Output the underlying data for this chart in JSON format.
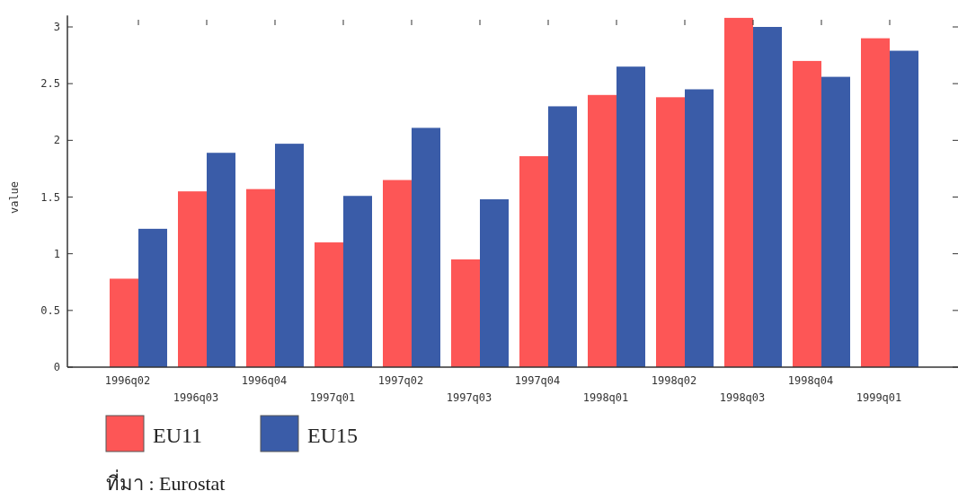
{
  "chart_data": {
    "type": "bar",
    "ylabel": "value",
    "categories": [
      "1996q02",
      "1996q03",
      "1996q04",
      "1997q01",
      "1997q02",
      "1997q03",
      "1997q04",
      "1998q01",
      "1998q02",
      "1998q03",
      "1998q04",
      "1999q01"
    ],
    "series": [
      {
        "name": "EU11",
        "color": "#fd5656",
        "values": [
          0.78,
          1.55,
          1.57,
          1.1,
          1.65,
          0.95,
          1.86,
          2.4,
          2.38,
          3.08,
          2.7,
          2.9
        ]
      },
      {
        "name": "EU15",
        "color": "#3a5ca8",
        "values": [
          1.22,
          1.89,
          1.97,
          1.51,
          2.11,
          1.48,
          2.3,
          2.65,
          2.45,
          3.0,
          2.56,
          2.79
        ]
      }
    ],
    "ylim": [
      0,
      3.1
    ],
    "yticks": [
      0,
      0.5,
      1,
      1.5,
      2,
      2.5,
      3
    ],
    "legend": "bottom left",
    "annotations": [
      "ที่มา : Eurostat"
    ]
  }
}
